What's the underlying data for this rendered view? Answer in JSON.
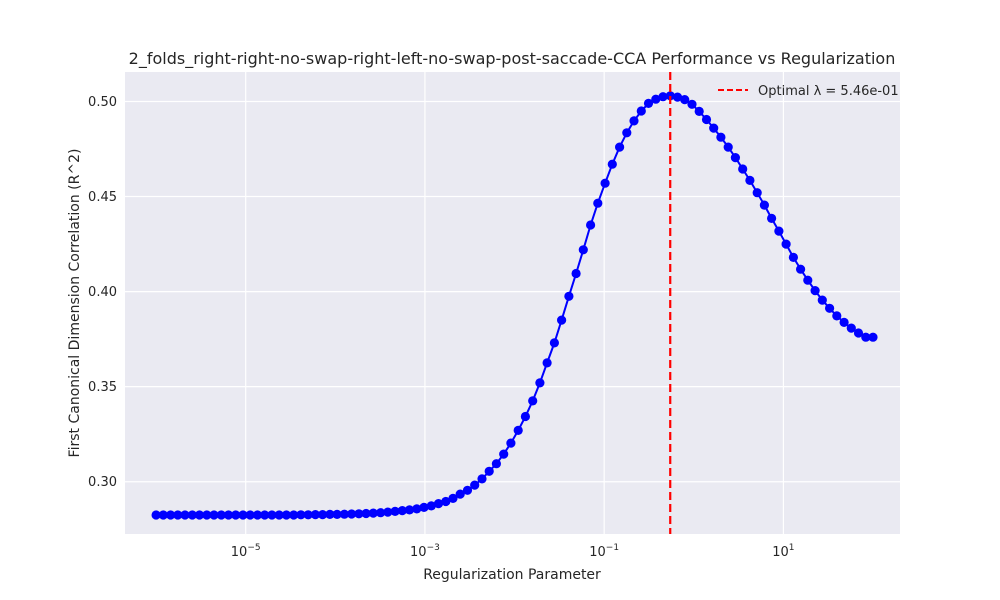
{
  "chart_data": {
    "type": "line",
    "title": "2_folds_right-right-no-swap-right-left-no-swap-post-saccade-CCA Performance vs Regularization",
    "xlabel": "Regularization Parameter",
    "ylabel": "First Canonical Dimension Correlation (R^2)",
    "xscale": "log",
    "xlim": [
      4.5e-07,
      200.0
    ],
    "ylim": [
      0.2725,
      0.5155
    ],
    "x_ticks": [
      {
        "value": 1e-05,
        "base": "10",
        "exp": "−5"
      },
      {
        "value": 0.001,
        "base": "10",
        "exp": "−3"
      },
      {
        "value": 0.1,
        "base": "10",
        "exp": "−1"
      },
      {
        "value": 10.0,
        "base": "10",
        "exp": "1"
      }
    ],
    "y_ticks": [
      "0.30",
      "0.35",
      "0.40",
      "0.45",
      "0.50"
    ],
    "grid": true,
    "legend_position": "top-right",
    "legend": [
      {
        "label": "Optimal λ = 5.46e-01",
        "style": "dashed",
        "color": "#ff0000"
      }
    ],
    "optimal_lambda": 0.546,
    "colors": {
      "series": "#0000ff",
      "optimal_line": "#ff0000",
      "plot_bg": "#eaeaf2",
      "grid": "#ffffff"
    },
    "series": [
      {
        "x_log10_range": [
          -6,
          2
        ],
        "point_count": 100,
        "y": [
          0.2825,
          0.2825,
          0.2825,
          0.2825,
          0.2825,
          0.2825,
          0.2825,
          0.2825,
          0.2825,
          0.2825,
          0.2825,
          0.2825,
          0.2825,
          0.2825,
          0.2825,
          0.2825,
          0.2825,
          0.2825,
          0.2825,
          0.2825,
          0.2826,
          0.2826,
          0.2827,
          0.2827,
          0.2828,
          0.2828,
          0.2829,
          0.283,
          0.2831,
          0.2833,
          0.2835,
          0.2837,
          0.284,
          0.2844,
          0.2848,
          0.2852,
          0.2857,
          0.2865,
          0.2873,
          0.2885,
          0.2896,
          0.2912,
          0.2935,
          0.2955,
          0.2982,
          0.3015,
          0.3055,
          0.3095,
          0.3145,
          0.3203,
          0.327,
          0.3343,
          0.3425,
          0.352,
          0.3625,
          0.373,
          0.385,
          0.3975,
          0.4095,
          0.422,
          0.435,
          0.4465,
          0.457,
          0.467,
          0.476,
          0.4835,
          0.4898,
          0.495,
          0.499,
          0.5012,
          0.5025,
          0.503,
          0.5023,
          0.501,
          0.4985,
          0.4948,
          0.4905,
          0.486,
          0.4812,
          0.476,
          0.4705,
          0.4645,
          0.4585,
          0.452,
          0.4455,
          0.4385,
          0.4318,
          0.425,
          0.418,
          0.4118,
          0.406,
          0.4005,
          0.3955,
          0.3912,
          0.3872,
          0.3838,
          0.3808,
          0.3782,
          0.376,
          0.376
        ]
      }
    ]
  }
}
